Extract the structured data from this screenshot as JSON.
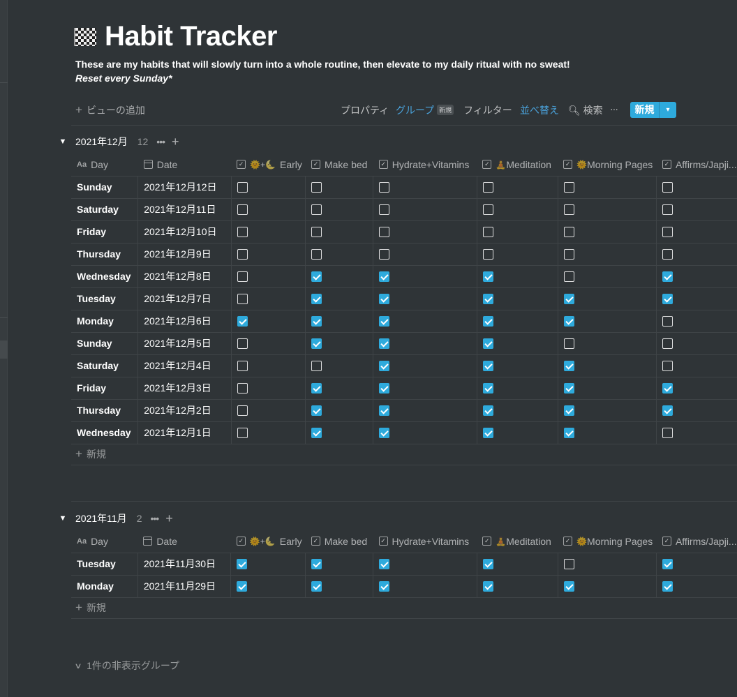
{
  "page": {
    "title": "Habit Tracker",
    "icon": "checkered-flag-icon",
    "description_line1": "These are my habits that will slowly turn into a whole routine, then elevate to my daily ritual with no sweat!",
    "description_line2": "Reset every Sunday*"
  },
  "toolbar": {
    "add_view": "ビューの追加",
    "properties": "プロパティ",
    "group": "グループ",
    "group_badge": "新規",
    "filter": "フィルター",
    "sort": "並べ替え",
    "search": "検索",
    "more": "···",
    "new_button": "新規",
    "accent_color": "#2eaadc"
  },
  "columns": {
    "day": "Day",
    "date": "Date",
    "c1_prefix": "🌞+🌜",
    "c1": "Early",
    "c2": "Make bed",
    "c3": "Hydrate+Vitamins",
    "c4_prefix": "🧘",
    "c4": "Meditation",
    "c5_prefix": "🌞",
    "c5": "Morning Pages",
    "c6": "Affirms/Japji..."
  },
  "groups": [
    {
      "name": "2021年12月",
      "count": "12",
      "rows": [
        {
          "day": "Sunday",
          "date": "2021年12月12日",
          "checks": [
            false,
            false,
            false,
            false,
            false,
            false
          ]
        },
        {
          "day": "Saturday",
          "date": "2021年12月11日",
          "checks": [
            false,
            false,
            false,
            false,
            false,
            false
          ]
        },
        {
          "day": "Friday",
          "date": "2021年12月10日",
          "checks": [
            false,
            false,
            false,
            false,
            false,
            false
          ]
        },
        {
          "day": "Thursday",
          "date": "2021年12月9日",
          "checks": [
            false,
            false,
            false,
            false,
            false,
            false
          ]
        },
        {
          "day": "Wednesday",
          "date": "2021年12月8日",
          "checks": [
            false,
            true,
            true,
            true,
            false,
            true
          ]
        },
        {
          "day": "Tuesday",
          "date": "2021年12月7日",
          "checks": [
            false,
            true,
            true,
            true,
            true,
            true
          ]
        },
        {
          "day": "Monday",
          "date": "2021年12月6日",
          "checks": [
            true,
            true,
            true,
            true,
            true,
            false
          ]
        },
        {
          "day": "Sunday",
          "date": "2021年12月5日",
          "checks": [
            false,
            true,
            true,
            true,
            false,
            false
          ]
        },
        {
          "day": "Saturday",
          "date": "2021年12月4日",
          "checks": [
            false,
            false,
            true,
            true,
            true,
            false
          ]
        },
        {
          "day": "Friday",
          "date": "2021年12月3日",
          "checks": [
            false,
            true,
            true,
            true,
            true,
            true
          ]
        },
        {
          "day": "Thursday",
          "date": "2021年12月2日",
          "checks": [
            false,
            true,
            true,
            true,
            true,
            true
          ]
        },
        {
          "day": "Wednesday",
          "date": "2021年12月1日",
          "checks": [
            false,
            true,
            true,
            true,
            true,
            false
          ]
        }
      ],
      "add_row": "新規"
    },
    {
      "name": "2021年11月",
      "count": "2",
      "rows": [
        {
          "day": "Tuesday",
          "date": "2021年11月30日",
          "checks": [
            true,
            true,
            true,
            true,
            false,
            true
          ]
        },
        {
          "day": "Monday",
          "date": "2021年11月29日",
          "checks": [
            true,
            true,
            true,
            true,
            true,
            true
          ]
        }
      ],
      "add_row": "新規"
    }
  ],
  "hidden_groups": "1件の非表示グループ"
}
